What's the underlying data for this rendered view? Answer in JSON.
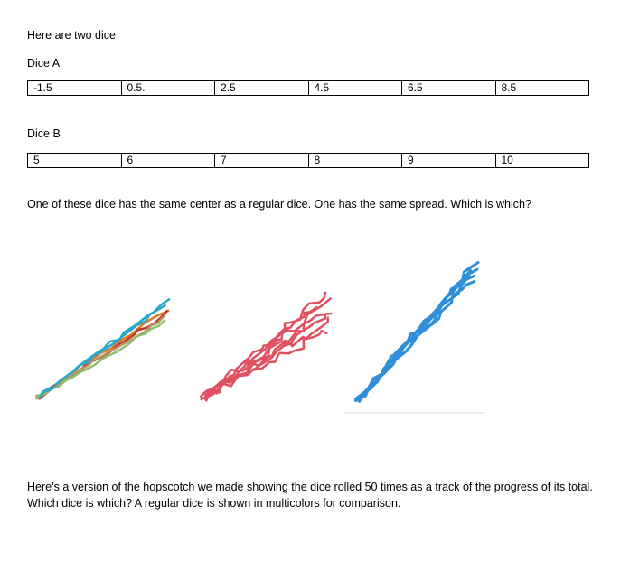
{
  "intro": "Here are two dice",
  "dice_a": {
    "label": "Dice A",
    "faces": [
      "-1.5",
      "0.5.",
      "2.5",
      "4.5",
      "6.5",
      "8.5"
    ]
  },
  "dice_b": {
    "label": "Dice B",
    "faces": [
      "5",
      "6",
      "7",
      "8",
      "9",
      "10"
    ]
  },
  "question": "One of these dice has the same center as a regular dice. One has the same spread. Which is which?",
  "caption": "Here’s a version of the hopscotch we made showing the dice rolled 50 times as a track of the progress of its total. Which dice is which? A regular dice is shown in multicolors for comparison.",
  "colors": {
    "regular_dice": [
      "#2aa7c9",
      "#e87722",
      "#c0392b",
      "#b8956a",
      "#8fbf6a"
    ],
    "red_tracks": "#e05060",
    "blue_tracks": "#2f8fd8"
  }
}
